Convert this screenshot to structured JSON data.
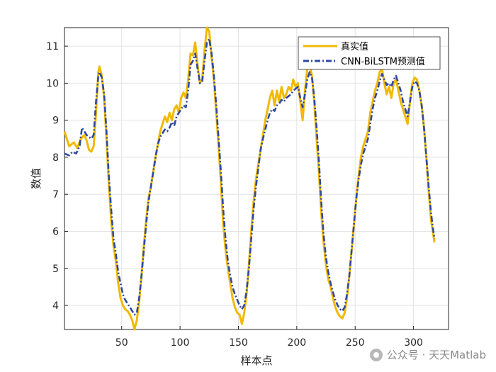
{
  "chart_data": {
    "type": "line",
    "title": "",
    "xlabel": "样本点",
    "ylabel": "数值",
    "xlim": [
      1,
      330
    ],
    "ylim": [
      3.35,
      11.5
    ],
    "x_ticks": [
      50,
      100,
      150,
      200,
      250,
      300
    ],
    "y_ticks": [
      4,
      5,
      6,
      7,
      8,
      9,
      10,
      11
    ],
    "grid": true,
    "legend_position": "top-right",
    "series": [
      {
        "name": "真实值",
        "color": "#f2b900",
        "style": "solid",
        "points": [
          [
            1,
            8.7
          ],
          [
            5,
            8.3
          ],
          [
            9,
            8.4
          ],
          [
            12,
            8.25
          ],
          [
            15,
            8.5
          ],
          [
            18,
            8.6
          ],
          [
            20,
            8.45
          ],
          [
            22,
            8.2
          ],
          [
            24,
            8.15
          ],
          [
            26,
            8.3
          ],
          [
            28,
            9.2
          ],
          [
            30,
            10.3
          ],
          [
            31,
            10.45
          ],
          [
            33,
            10.2
          ],
          [
            35,
            9.6
          ],
          [
            37,
            8.5
          ],
          [
            39,
            7.3
          ],
          [
            41,
            6.3
          ],
          [
            43,
            5.6
          ],
          [
            45,
            5.2
          ],
          [
            47,
            4.6
          ],
          [
            49,
            4.2
          ],
          [
            51,
            4.0
          ],
          [
            53,
            3.9
          ],
          [
            55,
            3.85
          ],
          [
            57,
            3.75
          ],
          [
            59,
            3.6
          ],
          [
            61,
            3.35
          ],
          [
            63,
            3.6
          ],
          [
            65,
            4.1
          ],
          [
            67,
            4.8
          ],
          [
            69,
            5.6
          ],
          [
            71,
            6.3
          ],
          [
            73,
            6.9
          ],
          [
            75,
            7.2
          ],
          [
            77,
            7.6
          ],
          [
            79,
            8.0
          ],
          [
            81,
            8.35
          ],
          [
            83,
            8.7
          ],
          [
            85,
            8.9
          ],
          [
            87,
            9.1
          ],
          [
            89,
            8.95
          ],
          [
            91,
            9.2
          ],
          [
            93,
            9.0
          ],
          [
            95,
            9.3
          ],
          [
            97,
            9.4
          ],
          [
            99,
            9.2
          ],
          [
            101,
            9.6
          ],
          [
            103,
            9.75
          ],
          [
            105,
            9.6
          ],
          [
            107,
            10.1
          ],
          [
            109,
            10.8
          ],
          [
            111,
            10.75
          ],
          [
            113,
            11.1
          ],
          [
            115,
            10.5
          ],
          [
            117,
            10.0
          ],
          [
            119,
            10.1
          ],
          [
            121,
            10.9
          ],
          [
            123,
            11.5
          ],
          [
            125,
            11.4
          ],
          [
            127,
            10.7
          ],
          [
            129,
            10.1
          ],
          [
            131,
            9.2
          ],
          [
            133,
            8.3
          ],
          [
            135,
            7.3
          ],
          [
            137,
            6.2
          ],
          [
            139,
            5.5
          ],
          [
            141,
            5.0
          ],
          [
            143,
            4.6
          ],
          [
            145,
            4.2
          ],
          [
            147,
            3.95
          ],
          [
            149,
            3.8
          ],
          [
            151,
            3.75
          ],
          [
            153,
            3.5
          ],
          [
            155,
            3.8
          ],
          [
            157,
            4.3
          ],
          [
            159,
            5.1
          ],
          [
            161,
            6.0
          ],
          [
            163,
            6.8
          ],
          [
            165,
            7.4
          ],
          [
            167,
            7.8
          ],
          [
            169,
            8.2
          ],
          [
            171,
            8.6
          ],
          [
            173,
            9.0
          ],
          [
            175,
            9.3
          ],
          [
            177,
            9.6
          ],
          [
            179,
            9.8
          ],
          [
            181,
            9.4
          ],
          [
            183,
            9.8
          ],
          [
            185,
            9.5
          ],
          [
            187,
            9.9
          ],
          [
            189,
            9.6
          ],
          [
            191,
            9.7
          ],
          [
            193,
            9.9
          ],
          [
            195,
            9.8
          ],
          [
            197,
            10.1
          ],
          [
            199,
            9.9
          ],
          [
            201,
            10.0
          ],
          [
            203,
            9.5
          ],
          [
            205,
            9.0
          ],
          [
            207,
            9.8
          ],
          [
            209,
            10.4
          ],
          [
            211,
            10.5
          ],
          [
            213,
            10.2
          ],
          [
            215,
            9.5
          ],
          [
            217,
            8.5
          ],
          [
            219,
            7.6
          ],
          [
            221,
            6.5
          ],
          [
            223,
            5.7
          ],
          [
            225,
            5.1
          ],
          [
            227,
            4.7
          ],
          [
            229,
            4.5
          ],
          [
            231,
            4.2
          ],
          [
            233,
            3.95
          ],
          [
            235,
            3.8
          ],
          [
            237,
            3.7
          ],
          [
            239,
            3.65
          ],
          [
            241,
            3.8
          ],
          [
            243,
            4.2
          ],
          [
            245,
            4.8
          ],
          [
            247,
            5.5
          ],
          [
            249,
            6.2
          ],
          [
            251,
            6.9
          ],
          [
            253,
            7.5
          ],
          [
            255,
            8.0
          ],
          [
            257,
            8.3
          ],
          [
            259,
            8.5
          ],
          [
            261,
            8.7
          ],
          [
            263,
            9.2
          ],
          [
            265,
            9.5
          ],
          [
            267,
            9.8
          ],
          [
            269,
            10.0
          ],
          [
            271,
            10.3
          ],
          [
            273,
            10.4
          ],
          [
            275,
            10.0
          ],
          [
            277,
            9.7
          ],
          [
            279,
            9.9
          ],
          [
            281,
            9.6
          ],
          [
            283,
            10.0
          ],
          [
            285,
            10.1
          ],
          [
            287,
            9.8
          ],
          [
            289,
            9.5
          ],
          [
            291,
            9.3
          ],
          [
            293,
            9.1
          ],
          [
            295,
            8.9
          ],
          [
            297,
            9.5
          ],
          [
            299,
            10.0
          ],
          [
            301,
            10.15
          ],
          [
            303,
            10.1
          ],
          [
            305,
            9.8
          ],
          [
            307,
            9.4
          ],
          [
            309,
            8.8
          ],
          [
            311,
            8.0
          ],
          [
            313,
            7.1
          ],
          [
            315,
            6.3
          ],
          [
            317,
            5.9
          ],
          [
            318,
            5.7
          ]
        ]
      },
      {
        "name": "CNN-BiLSTM预测值",
        "color": "#2f4a9e",
        "style": "dashdot",
        "points": [
          [
            1,
            8.1
          ],
          [
            5,
            8.05
          ],
          [
            8,
            8.15
          ],
          [
            11,
            8.1
          ],
          [
            14,
            8.3
          ],
          [
            16,
            8.8
          ],
          [
            18,
            8.7
          ],
          [
            20,
            8.6
          ],
          [
            22,
            8.55
          ],
          [
            24,
            8.5
          ],
          [
            26,
            8.6
          ],
          [
            28,
            9.5
          ],
          [
            30,
            10.2
          ],
          [
            31,
            10.3
          ],
          [
            33,
            10.15
          ],
          [
            35,
            9.7
          ],
          [
            37,
            8.7
          ],
          [
            39,
            7.5
          ],
          [
            41,
            6.6
          ],
          [
            43,
            5.8
          ],
          [
            45,
            5.4
          ],
          [
            47,
            4.9
          ],
          [
            49,
            4.6
          ],
          [
            51,
            4.3
          ],
          [
            53,
            4.15
          ],
          [
            55,
            4.05
          ],
          [
            57,
            3.95
          ],
          [
            59,
            3.85
          ],
          [
            61,
            3.75
          ],
          [
            63,
            3.8
          ],
          [
            65,
            4.2
          ],
          [
            67,
            4.8
          ],
          [
            69,
            5.5
          ],
          [
            71,
            6.2
          ],
          [
            73,
            6.8
          ],
          [
            75,
            7.2
          ],
          [
            77,
            7.6
          ],
          [
            79,
            8.0
          ],
          [
            81,
            8.35
          ],
          [
            83,
            8.55
          ],
          [
            85,
            8.65
          ],
          [
            87,
            8.75
          ],
          [
            89,
            8.7
          ],
          [
            91,
            8.8
          ],
          [
            93,
            8.95
          ],
          [
            95,
            8.85
          ],
          [
            97,
            9.1
          ],
          [
            99,
            9.2
          ],
          [
            101,
            9.3
          ],
          [
            103,
            9.4
          ],
          [
            105,
            9.35
          ],
          [
            107,
            9.8
          ],
          [
            109,
            10.5
          ],
          [
            111,
            10.6
          ],
          [
            113,
            10.8
          ],
          [
            115,
            10.4
          ],
          [
            117,
            10.0
          ],
          [
            119,
            10.05
          ],
          [
            121,
            10.6
          ],
          [
            123,
            11.1
          ],
          [
            125,
            11.2
          ],
          [
            127,
            10.8
          ],
          [
            129,
            10.2
          ],
          [
            131,
            9.4
          ],
          [
            133,
            8.5
          ],
          [
            135,
            7.6
          ],
          [
            137,
            6.6
          ],
          [
            139,
            5.8
          ],
          [
            141,
            5.2
          ],
          [
            143,
            4.8
          ],
          [
            145,
            4.5
          ],
          [
            147,
            4.3
          ],
          [
            149,
            4.15
          ],
          [
            151,
            4.0
          ],
          [
            153,
            3.9
          ],
          [
            155,
            4.0
          ],
          [
            157,
            4.4
          ],
          [
            159,
            5.0
          ],
          [
            161,
            5.8
          ],
          [
            163,
            6.6
          ],
          [
            165,
            7.2
          ],
          [
            167,
            7.7
          ],
          [
            169,
            8.2
          ],
          [
            171,
            8.5
          ],
          [
            173,
            8.75
          ],
          [
            175,
            9.0
          ],
          [
            177,
            9.2
          ],
          [
            179,
            9.3
          ],
          [
            181,
            9.25
          ],
          [
            183,
            9.4
          ],
          [
            185,
            9.45
          ],
          [
            187,
            9.55
          ],
          [
            189,
            9.5
          ],
          [
            191,
            9.6
          ],
          [
            193,
            9.65
          ],
          [
            195,
            9.7
          ],
          [
            197,
            9.8
          ],
          [
            199,
            9.85
          ],
          [
            201,
            9.9
          ],
          [
            203,
            9.6
          ],
          [
            205,
            9.35
          ],
          [
            207,
            9.7
          ],
          [
            209,
            10.1
          ],
          [
            211,
            10.3
          ],
          [
            213,
            10.15
          ],
          [
            215,
            9.6
          ],
          [
            217,
            8.8
          ],
          [
            219,
            7.9
          ],
          [
            221,
            6.8
          ],
          [
            223,
            5.9
          ],
          [
            225,
            5.3
          ],
          [
            227,
            4.9
          ],
          [
            229,
            4.6
          ],
          [
            231,
            4.35
          ],
          [
            233,
            4.15
          ],
          [
            235,
            4.0
          ],
          [
            237,
            3.9
          ],
          [
            239,
            3.85
          ],
          [
            241,
            3.95
          ],
          [
            243,
            4.3
          ],
          [
            245,
            4.8
          ],
          [
            247,
            5.5
          ],
          [
            249,
            6.2
          ],
          [
            251,
            6.9
          ],
          [
            253,
            7.4
          ],
          [
            255,
            7.8
          ],
          [
            257,
            8.1
          ],
          [
            259,
            8.3
          ],
          [
            261,
            8.5
          ],
          [
            263,
            8.9
          ],
          [
            265,
            9.3
          ],
          [
            267,
            9.6
          ],
          [
            269,
            9.8
          ],
          [
            271,
            10.05
          ],
          [
            273,
            10.25
          ],
          [
            275,
            10.1
          ],
          [
            277,
            9.95
          ],
          [
            279,
            10.0
          ],
          [
            281,
            9.9
          ],
          [
            283,
            10.1
          ],
          [
            285,
            10.2
          ],
          [
            287,
            10.0
          ],
          [
            289,
            9.8
          ],
          [
            291,
            9.5
          ],
          [
            293,
            9.3
          ],
          [
            295,
            9.1
          ],
          [
            297,
            9.5
          ],
          [
            299,
            9.9
          ],
          [
            301,
            10.05
          ],
          [
            303,
            10.0
          ],
          [
            305,
            9.8
          ],
          [
            307,
            9.4
          ],
          [
            309,
            8.8
          ],
          [
            311,
            8.0
          ],
          [
            313,
            7.2
          ],
          [
            315,
            6.5
          ],
          [
            317,
            6.0
          ],
          [
            318,
            5.8
          ]
        ]
      }
    ]
  },
  "watermark": {
    "icon": "wechat-icon",
    "text": "公众号 · 天天Matlab"
  }
}
